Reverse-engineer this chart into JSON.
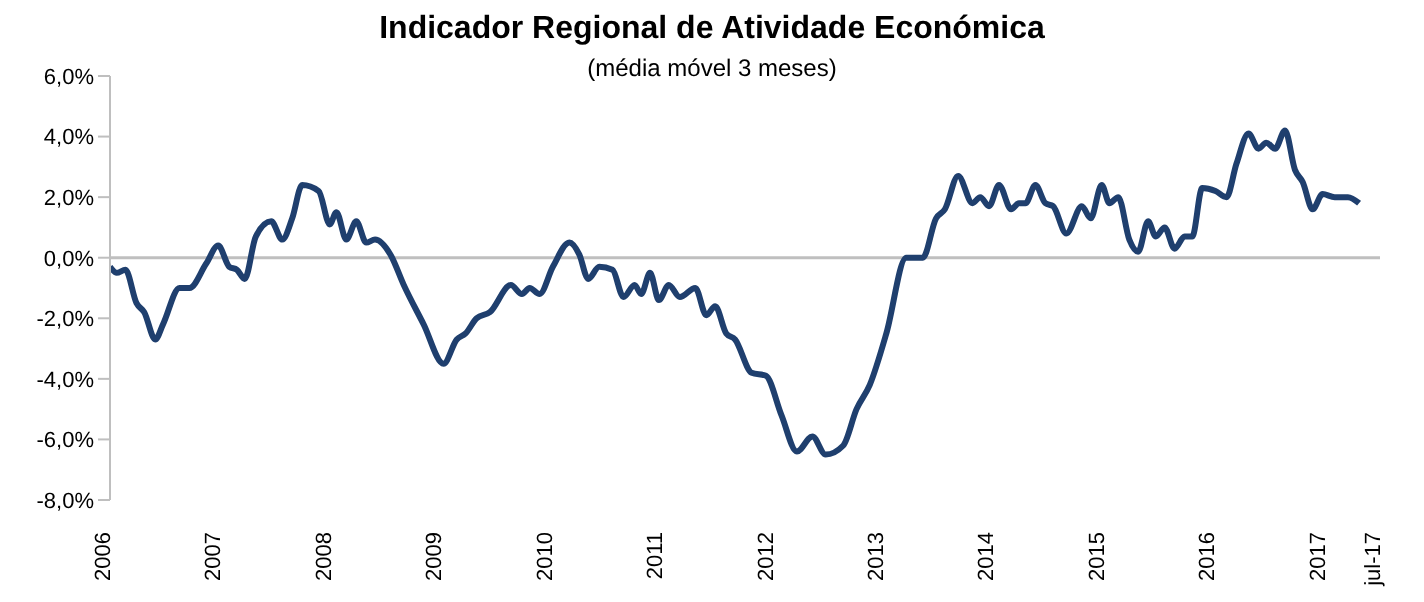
{
  "chart_data": {
    "type": "line",
    "title": "Indicador Regional de Atividade Económica",
    "subtitle": "(média móvel 3 meses)",
    "x": [
      2006.0,
      2006.06,
      2006.14,
      2006.24,
      2006.31,
      2006.41,
      2006.48,
      2006.63,
      2006.72,
      2006.87,
      2006.98,
      2007.08,
      2007.15,
      2007.22,
      2007.32,
      2007.46,
      2007.56,
      2007.65,
      2007.74,
      2007.89,
      2007.99,
      2008.05,
      2008.14,
      2008.23,
      2008.32,
      2008.4,
      2008.54,
      2008.66,
      2008.84,
      2009.02,
      2009.14,
      2009.22,
      2009.32,
      2009.44,
      2009.63,
      2009.73,
      2009.8,
      2009.89,
      2010.01,
      2010.16,
      2010.25,
      2010.33,
      2010.43,
      2010.55,
      2010.65,
      2010.75,
      2010.81,
      2010.89,
      2010.97,
      2011.06,
      2011.16,
      2011.3,
      2011.4,
      2011.48,
      2011.58,
      2011.66,
      2011.81,
      2011.94,
      2012.08,
      2012.22,
      2012.36,
      2012.48,
      2012.64,
      2012.76,
      2012.88,
      2013.03,
      2013.21,
      2013.36,
      2013.48,
      2013.56,
      2013.68,
      2013.81,
      2013.88,
      2013.96,
      2014.05,
      2014.16,
      2014.23,
      2014.29,
      2014.38,
      2014.47,
      2014.54,
      2014.66,
      2014.8,
      2014.88,
      2014.98,
      2015.05,
      2015.13,
      2015.23,
      2015.31,
      2015.4,
      2015.47,
      2015.55,
      2015.64,
      2015.73,
      2015.8,
      2015.89,
      2016.01,
      2016.11,
      2016.2,
      2016.31,
      2016.4,
      2016.47,
      2016.55,
      2016.64,
      2016.73,
      2016.8,
      2016.89,
      2016.98,
      2017.09,
      2017.21,
      2017.31
    ],
    "series": [
      {
        "color": "#1f3f6e",
        "values": [
          -0.3,
          -0.5,
          -0.4,
          -1.5,
          -1.8,
          -2.7,
          -2.2,
          -1.0,
          -1.0,
          -0.2,
          0.4,
          -0.3,
          -0.4,
          -0.7,
          0.7,
          1.2,
          0.6,
          1.3,
          2.4,
          2.2,
          1.1,
          1.5,
          0.6,
          1.2,
          0.5,
          0.6,
          0.1,
          -0.9,
          -2.2,
          -3.5,
          -2.7,
          -2.5,
          -2.0,
          -1.8,
          -0.9,
          -1.2,
          -1.0,
          -1.2,
          -0.3,
          0.5,
          0.1,
          -0.7,
          -0.3,
          -0.4,
          -1.3,
          -0.9,
          -1.2,
          -0.5,
          -1.4,
          -0.9,
          -1.3,
          -1.0,
          -1.9,
          -1.6,
          -2.5,
          -2.7,
          -3.8,
          -3.9,
          -5.2,
          -6.4,
          -5.9,
          -6.5,
          -6.2,
          -5.0,
          -4.2,
          -2.5,
          0.0,
          0.0,
          1.3,
          1.6,
          2.7,
          1.8,
          2.0,
          1.7,
          2.4,
          1.6,
          1.8,
          1.8,
          2.4,
          1.8,
          1.7,
          0.8,
          1.7,
          1.3,
          2.4,
          1.8,
          2.0,
          0.6,
          0.2,
          1.2,
          0.7,
          1.0,
          0.3,
          0.7,
          0.7,
          2.3,
          2.2,
          2.0,
          3.1,
          4.1,
          3.6,
          3.8,
          3.6,
          4.2,
          2.9,
          2.5,
          1.6,
          2.1,
          2.0,
          2.0,
          1.8
        ]
      }
    ],
    "xlim": [
      2006,
      2017.5
    ],
    "xticks": [
      2006,
      2007,
      2008,
      2009,
      2010,
      2011,
      2012,
      2013,
      2014,
      2015,
      2016,
      2017,
      {
        "value": 2017.5,
        "label": "jul-17"
      }
    ],
    "ylim": [
      -8,
      6
    ],
    "yticks": [
      {
        "value": -8,
        "label": "-8,0%"
      },
      {
        "value": -6,
        "label": "-6,0%"
      },
      {
        "value": -4,
        "label": "-4,0%"
      },
      {
        "value": -2,
        "label": "-2,0%"
      },
      {
        "value": 0,
        "label": "0,0%"
      },
      {
        "value": 2,
        "label": "2,0%"
      },
      {
        "value": 4,
        "label": "4,0%"
      },
      {
        "value": 6,
        "label": "6,0%"
      }
    ],
    "ref_lines": [
      {
        "axis": "y",
        "value": 0,
        "color": "#bfbfbf"
      }
    ],
    "grid": false,
    "marker": "none",
    "line_style": "solid"
  }
}
